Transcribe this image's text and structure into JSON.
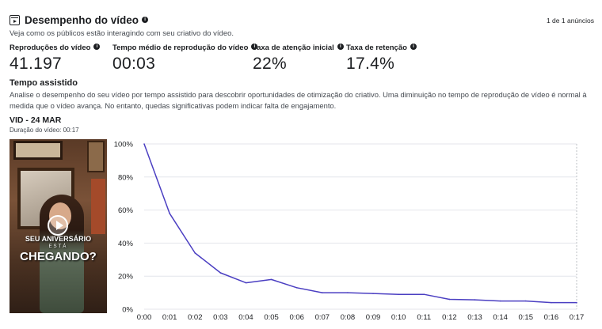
{
  "header": {
    "title": "Desempenho do vídeo",
    "info_icon": "i",
    "ad_count": "1 de 1 anúncios",
    "subtitle": "Veja como os públicos estão interagindo com seu criativo do vídeo."
  },
  "metrics": [
    {
      "label": "Reproduções do vídeo",
      "value": "41.197"
    },
    {
      "label": "Tempo médio de reprodução do vídeo",
      "value": "00:03"
    },
    {
      "label": "Taxa de atenção inicial",
      "value": "22%"
    },
    {
      "label": "Taxa de retenção",
      "value": "17.4%"
    }
  ],
  "section": {
    "title": "Tempo assistido",
    "description": "Analise o desempenho do seu vídeo por tempo assistido para descobrir oportunidades de otimização do criativo. Uma diminuição no tempo de reprodução de vídeo é normal à medida que o vídeo avança. No entanto, quedas significativas podem indicar falta de engajamento."
  },
  "video": {
    "title": "VID - 24 MAR",
    "duration": "Duração do vídeo: 00:17",
    "overlay_line1": "SEU ANIVERSÁRIO",
    "overlay_line2": "ESTÁ",
    "overlay_line3": "CHEGANDO?",
    "play_icon": "play-icon"
  },
  "colors": {
    "line": "#4b3fc2",
    "grid": "#e4e6eb",
    "axis_text": "#1c1e21"
  },
  "chart_data": {
    "type": "line",
    "x": [
      "0:00",
      "0:01",
      "0:02",
      "0:03",
      "0:04",
      "0:05",
      "0:06",
      "0:07",
      "0:08",
      "0:09",
      "0:10",
      "0:11",
      "0:12",
      "0:13",
      "0:14",
      "0:15",
      "0:16",
      "0:17"
    ],
    "series": [
      {
        "values": [
          100,
          58,
          34,
          22,
          16,
          18,
          13,
          10,
          10,
          9.5,
          9,
          9,
          6,
          5.7,
          5,
          5,
          4,
          4
        ]
      }
    ],
    "yticks": [
      "0%",
      "20%",
      "40%",
      "60%",
      "80%",
      "100%"
    ],
    "ylim": [
      0,
      100
    ],
    "grid": true,
    "legend": "none"
  }
}
